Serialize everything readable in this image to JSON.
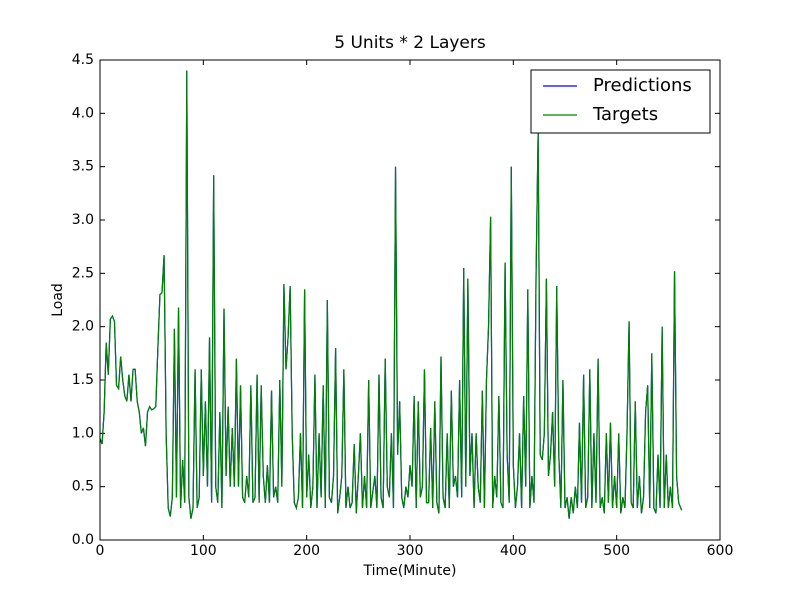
{
  "chart_data": {
    "type": "line",
    "title": "5 Units * 2 Layers",
    "xlabel": "Time(Minute)",
    "ylabel": "Load",
    "x": [
      0,
      2,
      4,
      6,
      8,
      10,
      12,
      14,
      16,
      18,
      20,
      22,
      24,
      26,
      28,
      30,
      32,
      34,
      36,
      38,
      40,
      42,
      44,
      46,
      48,
      50,
      52,
      54,
      56,
      58,
      60,
      62,
      64,
      66,
      68,
      70,
      72,
      74,
      76,
      78,
      80,
      82,
      84,
      86,
      88,
      90,
      92,
      94,
      96,
      98,
      100,
      102,
      104,
      106,
      108,
      110,
      112,
      114,
      116,
      118,
      120,
      122,
      124,
      126,
      128,
      130,
      132,
      134,
      136,
      138,
      140,
      142,
      144,
      146,
      148,
      150,
      152,
      154,
      156,
      158,
      160,
      162,
      164,
      166,
      168,
      170,
      172,
      174,
      176,
      178,
      180,
      182,
      184,
      186,
      188,
      190,
      192,
      194,
      196,
      198,
      200,
      202,
      204,
      206,
      208,
      210,
      212,
      214,
      216,
      218,
      220,
      222,
      224,
      226,
      228,
      230,
      232,
      234,
      236,
      238,
      240,
      242,
      244,
      246,
      248,
      250,
      252,
      254,
      256,
      258,
      260,
      262,
      264,
      266,
      268,
      270,
      272,
      274,
      276,
      278,
      280,
      282,
      284,
      286,
      288,
      290,
      292,
      294,
      296,
      298,
      300,
      302,
      304,
      306,
      308,
      310,
      312,
      314,
      316,
      318,
      320,
      322,
      324,
      326,
      328,
      330,
      332,
      334,
      336,
      338,
      340,
      342,
      344,
      346,
      348,
      350,
      352,
      354,
      356,
      358,
      360,
      362,
      364,
      366,
      368,
      370,
      372,
      374,
      376,
      378,
      380,
      382,
      384,
      386,
      388,
      390,
      392,
      394,
      396,
      398,
      400,
      402,
      404,
      406,
      408,
      410,
      412,
      414,
      416,
      418,
      420,
      422,
      424,
      426,
      428,
      430,
      432,
      434,
      436,
      438,
      440,
      442,
      444,
      446,
      448,
      450,
      452,
      454,
      456,
      458,
      460,
      462,
      464,
      466,
      468,
      470,
      472,
      474,
      476,
      478,
      480,
      482,
      484,
      486,
      488,
      490,
      492,
      494,
      496,
      498,
      500,
      502,
      504,
      506,
      508,
      510,
      512,
      514,
      516,
      518,
      520,
      522,
      524,
      526,
      528,
      530,
      532,
      534,
      536,
      538,
      540,
      542,
      544,
      546,
      548,
      550,
      552,
      554,
      556,
      558,
      560,
      562,
      563
    ],
    "series": [
      {
        "name": "Predictions",
        "color": "#0000ff",
        "values": [
          0.95,
          0.9,
          1.2,
          1.85,
          1.55,
          2.07,
          2.1,
          2.05,
          1.45,
          1.42,
          1.72,
          1.5,
          1.35,
          1.3,
          1.55,
          1.3,
          1.6,
          1.6,
          1.3,
          1.2,
          1.0,
          1.05,
          0.88,
          1.2,
          1.25,
          1.22,
          1.23,
          1.25,
          1.8,
          2.3,
          2.32,
          2.67,
          1.0,
          0.3,
          0.22,
          0.4,
          1.98,
          0.4,
          2.18,
          0.3,
          0.75,
          0.35,
          4.4,
          0.4,
          0.2,
          0.3,
          1.6,
          0.3,
          0.4,
          1.6,
          0.6,
          1.3,
          0.5,
          1.9,
          0.35,
          3.42,
          0.5,
          0.35,
          1.2,
          0.3,
          2.17,
          0.6,
          1.25,
          0.5,
          1.05,
          0.5,
          1.7,
          0.5,
          1.45,
          0.4,
          0.35,
          0.6,
          0.4,
          1.45,
          0.35,
          0.4,
          1.55,
          0.35,
          1.45,
          0.6,
          0.35,
          0.7,
          0.35,
          1.4,
          0.4,
          0.5,
          0.35,
          1.5,
          0.5,
          2.4,
          1.6,
          1.9,
          2.38,
          1.0,
          0.35,
          0.3,
          0.4,
          1.0,
          0.3,
          2.35,
          0.4,
          0.8,
          0.3,
          0.5,
          1.55,
          0.3,
          1.0,
          0.4,
          1.45,
          0.3,
          2.25,
          0.4,
          0.35,
          0.6,
          1.8,
          0.25,
          0.4,
          0.6,
          1.6,
          0.3,
          0.5,
          0.3,
          0.35,
          0.9,
          0.25,
          0.6,
          1.0,
          0.3,
          0.6,
          0.3,
          1.5,
          0.3,
          0.45,
          0.6,
          0.3,
          1.55,
          0.4,
          0.3,
          1.7,
          0.5,
          0.4,
          1.0,
          0.3,
          3.5,
          0.8,
          1.3,
          0.4,
          0.3,
          0.5,
          0.4,
          0.7,
          0.5,
          1.35,
          0.3,
          1.3,
          0.4,
          0.5,
          1.6,
          0.35,
          0.35,
          1.05,
          0.3,
          1.3,
          0.35,
          0.25,
          1.72,
          0.4,
          0.3,
          1.0,
          0.3,
          1.4,
          0.5,
          0.6,
          0.4,
          1.5,
          0.4,
          2.55,
          0.5,
          2.45,
          0.6,
          1.0,
          0.3,
          1.0,
          0.5,
          0.35,
          1.4,
          0.3,
          1.5,
          2.0,
          3.03,
          0.3,
          0.6,
          0.4,
          1.35,
          0.35,
          0.3,
          2.6,
          0.8,
          0.35,
          3.5,
          0.7,
          0.3,
          0.5,
          1.0,
          0.3,
          1.35,
          0.5,
          2.35,
          0.3,
          0.6,
          0.35,
          2.5,
          3.83,
          0.8,
          0.75,
          1.0,
          2.45,
          0.6,
          0.8,
          1.2,
          0.5,
          2.38,
          0.8,
          0.3,
          1.5,
          0.3,
          0.4,
          0.2,
          0.4,
          0.25,
          0.5,
          0.3,
          1.1,
          0.35,
          1.55,
          0.3,
          0.4,
          1.6,
          0.3,
          1.0,
          0.35,
          1.7,
          0.3,
          0.4,
          0.25,
          1.0,
          0.35,
          1.1,
          0.3,
          0.6,
          0.3,
          1.0,
          0.25,
          0.4,
          0.3,
          1.0,
          2.05,
          0.35,
          0.3,
          1.3,
          0.3,
          0.6,
          0.25,
          0.4,
          1.2,
          1.45,
          0.3,
          1.75,
          0.3,
          0.25,
          0.8,
          0.3,
          2.0,
          0.3,
          0.8,
          0.3,
          0.5,
          0.3,
          2.52,
          0.6,
          0.35,
          0.3,
          0.28
        ]
      },
      {
        "name": "Targets",
        "color": "#008000",
        "values": [
          0.95,
          0.9,
          1.2,
          1.85,
          1.55,
          2.07,
          2.1,
          2.05,
          1.45,
          1.42,
          1.72,
          1.5,
          1.35,
          1.3,
          1.55,
          1.3,
          1.6,
          1.6,
          1.3,
          1.2,
          1.0,
          1.05,
          0.88,
          1.2,
          1.25,
          1.22,
          1.23,
          1.25,
          1.8,
          2.3,
          2.32,
          2.67,
          1.0,
          0.3,
          0.22,
          0.4,
          1.98,
          0.4,
          2.18,
          0.3,
          0.75,
          0.35,
          4.4,
          0.4,
          0.2,
          0.3,
          1.6,
          0.3,
          0.4,
          1.6,
          0.6,
          1.3,
          0.5,
          1.9,
          0.35,
          3.42,
          0.5,
          0.35,
          1.2,
          0.3,
          2.17,
          0.6,
          1.25,
          0.5,
          1.05,
          0.5,
          1.7,
          0.5,
          1.45,
          0.4,
          0.35,
          0.6,
          0.4,
          1.45,
          0.35,
          0.4,
          1.55,
          0.35,
          1.45,
          0.6,
          0.35,
          0.7,
          0.35,
          1.4,
          0.4,
          0.5,
          0.35,
          1.5,
          0.5,
          2.4,
          1.6,
          1.9,
          2.38,
          1.0,
          0.35,
          0.3,
          0.4,
          1.0,
          0.3,
          2.35,
          0.4,
          0.8,
          0.3,
          0.5,
          1.55,
          0.3,
          1.0,
          0.4,
          1.45,
          0.3,
          2.25,
          0.4,
          0.35,
          0.6,
          1.8,
          0.25,
          0.4,
          0.6,
          1.6,
          0.3,
          0.5,
          0.3,
          0.35,
          0.9,
          0.25,
          0.6,
          1.0,
          0.3,
          0.6,
          0.3,
          1.5,
          0.3,
          0.45,
          0.6,
          0.3,
          1.55,
          0.4,
          0.3,
          1.7,
          0.5,
          0.4,
          1.0,
          0.3,
          3.5,
          0.8,
          1.3,
          0.4,
          0.3,
          0.5,
          0.4,
          0.7,
          0.5,
          1.35,
          0.3,
          1.3,
          0.4,
          0.5,
          1.6,
          0.35,
          0.35,
          1.05,
          0.3,
          1.3,
          0.35,
          0.25,
          1.72,
          0.4,
          0.3,
          1.0,
          0.3,
          1.4,
          0.5,
          0.6,
          0.4,
          1.5,
          0.4,
          2.55,
          0.5,
          2.45,
          0.6,
          1.0,
          0.3,
          1.0,
          0.5,
          0.35,
          1.4,
          0.3,
          1.5,
          2.0,
          3.03,
          0.3,
          0.6,
          0.4,
          1.35,
          0.35,
          0.3,
          2.6,
          0.8,
          0.35,
          3.5,
          0.7,
          0.3,
          0.5,
          1.0,
          0.3,
          1.35,
          0.5,
          2.35,
          0.3,
          0.6,
          0.35,
          2.5,
          3.83,
          0.8,
          0.75,
          1.0,
          2.45,
          0.6,
          0.8,
          1.2,
          0.5,
          2.38,
          0.8,
          0.3,
          1.5,
          0.3,
          0.4,
          0.2,
          0.4,
          0.25,
          0.5,
          0.3,
          1.1,
          0.35,
          1.55,
          0.3,
          0.4,
          1.6,
          0.3,
          1.0,
          0.35,
          1.7,
          0.3,
          0.4,
          0.25,
          1.0,
          0.35,
          1.1,
          0.3,
          0.6,
          0.3,
          1.0,
          0.25,
          0.4,
          0.3,
          1.0,
          2.05,
          0.35,
          0.3,
          1.3,
          0.3,
          0.6,
          0.25,
          0.4,
          1.2,
          1.45,
          0.3,
          1.75,
          0.3,
          0.25,
          0.8,
          0.3,
          2.0,
          0.3,
          0.8,
          0.3,
          0.5,
          0.3,
          2.52,
          0.6,
          0.35,
          0.3,
          0.28
        ]
      }
    ],
    "xlim": [
      0,
      600
    ],
    "xticks": [
      0,
      100,
      200,
      300,
      400,
      500,
      600
    ],
    "ylim": [
      0,
      4.5
    ],
    "yticks": [
      {
        "value": 0,
        "label": "0.0"
      },
      0.5,
      {
        "value": 1,
        "label": "1.0"
      },
      1.5,
      {
        "value": 2,
        "label": "2.0"
      },
      2.5,
      {
        "value": 3,
        "label": "3.0"
      },
      3.5,
      {
        "value": 4,
        "label": "4.0"
      },
      4.5
    ],
    "grid": false,
    "legend": "upper right"
  }
}
